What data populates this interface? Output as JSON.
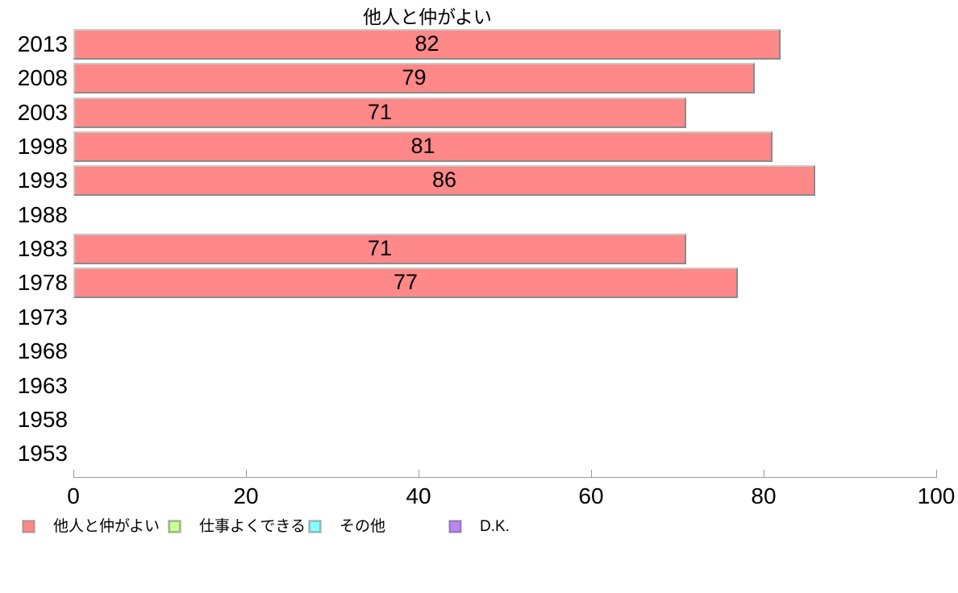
{
  "chart_data": {
    "type": "bar",
    "orientation": "horizontal",
    "title": "他人と仲がよい",
    "categories": [
      "2013",
      "2008",
      "2003",
      "1998",
      "1993",
      "1988",
      "1983",
      "1978",
      "1973",
      "1968",
      "1963",
      "1958",
      "1953"
    ],
    "values": [
      82,
      79,
      71,
      81,
      86,
      null,
      71,
      77,
      null,
      null,
      null,
      null,
      null
    ],
    "series_name": "他人と仲がよい",
    "xlabel": "",
    "ylabel": "",
    "xlim": [
      0,
      100
    ],
    "x_ticks": [
      0,
      20,
      40,
      60,
      80,
      100
    ],
    "grid": false,
    "value_labels_shown": true,
    "legend_position": "bottom",
    "bar_fill_color": "#ff8888",
    "bar_border_color": "#999999",
    "axis_color": "#999999",
    "text_color": "#000000",
    "background_color": "#ffffff"
  },
  "legend": {
    "items": [
      {
        "label": "他人と仲がよい",
        "fill": "#ff8888",
        "border": "#d08888"
      },
      {
        "label": "仕事よくできる",
        "fill": "#ccff99",
        "border": "#99bb77"
      },
      {
        "label": "その他",
        "fill": "#88ffff",
        "border": "#88bbbb"
      },
      {
        "label": "D.K.",
        "fill": "#bb88ee",
        "border": "#9977cc"
      }
    ]
  }
}
